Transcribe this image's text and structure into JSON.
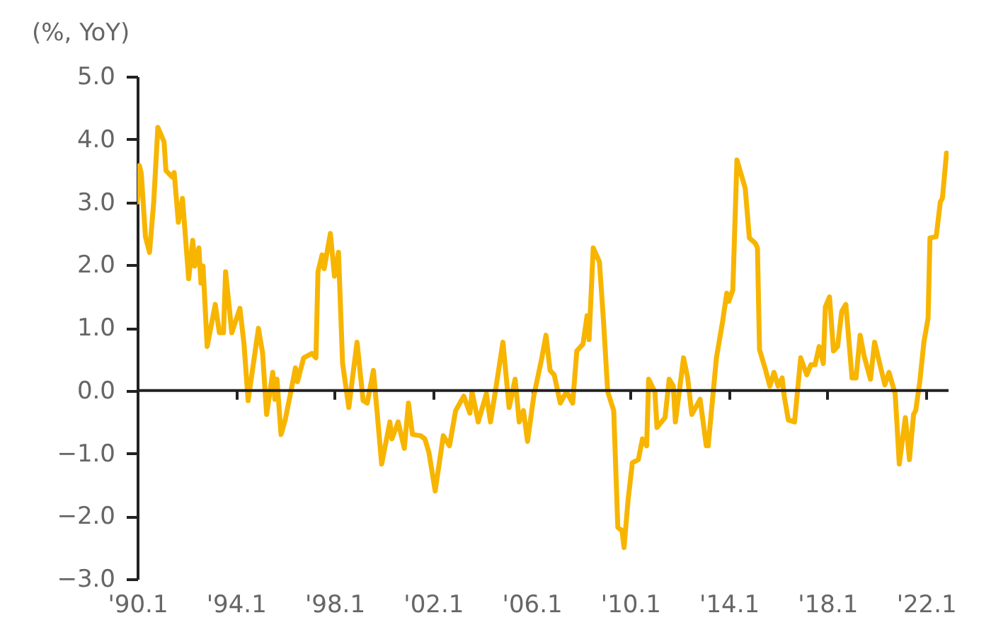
{
  "chart_data": {
    "type": "line",
    "ylabel": "(%, YoY)",
    "x": [
      "1990-01",
      "1990-02",
      "1990-03",
      "1990-05",
      "1990-07",
      "1990-09",
      "1990-11",
      "1991-02",
      "1991-03",
      "1991-06",
      "1991-07",
      "1991-09",
      "1991-11",
      "1992-02",
      "1992-04",
      "1992-05",
      "1992-07",
      "1992-08",
      "1992-09",
      "1992-11",
      "1993-03",
      "1993-05",
      "1993-07",
      "1993-08",
      "1993-11",
      "1994-03",
      "1994-05",
      "1994-07",
      "1994-12",
      "1995-02",
      "1995-04",
      "1995-07",
      "1995-08",
      "1995-09",
      "1995-11",
      "1996-01",
      "1996-05",
      "1996-06",
      "1996-07",
      "1996-10",
      "1997-02",
      "1997-04",
      "1997-05",
      "1997-07",
      "1997-08",
      "1997-11",
      "1998-01",
      "1998-03",
      "1998-05",
      "1998-08",
      "1998-12",
      "1999-03",
      "1999-05",
      "1999-08",
      "1999-12",
      "2000-04",
      "2000-05",
      "2000-08",
      "2000-11",
      "2001-01",
      "2001-03",
      "2001-07",
      "2001-09",
      "2001-11",
      "2002-02",
      "2002-06",
      "2002-09",
      "2002-12",
      "2003-04",
      "2003-07",
      "2003-08",
      "2003-11",
      "2004-03",
      "2004-05",
      "2004-07",
      "2004-11",
      "2005-02",
      "2005-05",
      "2005-07",
      "2005-09",
      "2005-11",
      "2006-02",
      "2006-06",
      "2006-08",
      "2006-10",
      "2006-12",
      "2007-03",
      "2007-06",
      "2007-09",
      "2007-11",
      "2008-02",
      "2008-04",
      "2008-05",
      "2008-07",
      "2008-10",
      "2008-12",
      "2009-02",
      "2009-05",
      "2009-07",
      "2009-09",
      "2009-10",
      "2009-12",
      "2010-02",
      "2010-05",
      "2010-07",
      "2010-09",
      "2010-10",
      "2011-01",
      "2011-02",
      "2011-06",
      "2011-08",
      "2011-10",
      "2011-11",
      "2012-03",
      "2012-05",
      "2012-07",
      "2012-11",
      "2013-02",
      "2013-03",
      "2013-07",
      "2013-10",
      "2013-12",
      "2014-01",
      "2014-03",
      "2014-05",
      "2014-09",
      "2014-11",
      "2015-02",
      "2015-03",
      "2015-04",
      "2015-07",
      "2015-09",
      "2015-11",
      "2016-01",
      "2016-03",
      "2016-04",
      "2016-06",
      "2016-09",
      "2016-12",
      "2017-03",
      "2017-05",
      "2017-07",
      "2017-09",
      "2017-11",
      "2017-12",
      "2018-02",
      "2018-04",
      "2018-06",
      "2018-08",
      "2018-10",
      "2019-01",
      "2019-03",
      "2019-05",
      "2019-07",
      "2019-10",
      "2019-12",
      "2020-03",
      "2020-05",
      "2020-07",
      "2020-10",
      "2020-12",
      "2021-03",
      "2021-05",
      "2021-07",
      "2021-08",
      "2021-10",
      "2021-12",
      "2022-02",
      "2022-03",
      "2022-06",
      "2022-08",
      "2022-09",
      "2022-11"
    ],
    "series": [
      {
        "color": "#f7b500",
        "values": [
          3.0,
          3.58,
          3.45,
          2.45,
          2.2,
          3.0,
          4.19,
          3.96,
          3.5,
          3.4,
          3.47,
          2.68,
          3.06,
          1.78,
          2.39,
          1.98,
          2.27,
          1.71,
          1.98,
          0.7,
          1.37,
          0.92,
          0.92,
          1.89,
          0.92,
          1.31,
          0.74,
          -0.16,
          0.99,
          0.59,
          -0.38,
          0.29,
          -0.14,
          0.18,
          -0.7,
          -0.47,
          0.18,
          0.36,
          0.14,
          0.52,
          0.59,
          0.52,
          1.89,
          2.16,
          1.94,
          2.5,
          1.82,
          2.2,
          0.43,
          -0.27,
          0.77,
          -0.16,
          -0.2,
          0.32,
          -1.17,
          -0.5,
          -0.77,
          -0.5,
          -0.92,
          -0.2,
          -0.7,
          -0.72,
          -0.77,
          -0.99,
          -1.6,
          -0.72,
          -0.88,
          -0.32,
          -0.09,
          -0.36,
          -0.02,
          -0.5,
          -0.05,
          -0.5,
          -0.09,
          0.77,
          -0.27,
          0.18,
          -0.5,
          -0.32,
          -0.81,
          -0.09,
          0.52,
          0.88,
          0.32,
          0.25,
          -0.2,
          -0.02,
          -0.2,
          0.63,
          0.74,
          1.19,
          0.81,
          2.27,
          2.05,
          1.1,
          -0.02,
          -0.32,
          -2.18,
          -2.23,
          -2.5,
          -1.73,
          -1.15,
          -1.1,
          -0.77,
          -0.88,
          0.18,
          -0.02,
          -0.59,
          -0.43,
          0.18,
          0.07,
          -0.5,
          0.52,
          0.2,
          -0.38,
          -0.14,
          -0.88,
          -0.88,
          0.52,
          1.1,
          1.55,
          1.42,
          1.6,
          3.67,
          3.22,
          2.43,
          2.34,
          2.27,
          0.65,
          0.32,
          0.07,
          0.29,
          0.07,
          0.2,
          -0.09,
          -0.47,
          -0.5,
          0.52,
          0.25,
          0.41,
          0.41,
          0.7,
          0.43,
          1.33,
          1.49,
          0.63,
          0.7,
          1.26,
          1.37,
          0.2,
          0.2,
          0.88,
          0.54,
          0.18,
          0.77,
          0.36,
          0.09,
          0.29,
          -0.05,
          -1.17,
          -0.43,
          -1.1,
          -0.38,
          -0.32,
          0.14,
          0.77,
          1.15,
          2.43,
          2.45,
          3.0,
          3.06,
          3.78
        ]
      }
    ],
    "xlim": [
      "1990-01",
      "2022-12"
    ],
    "xticks": [
      {
        "value": "1990-01",
        "label": "'90.1"
      },
      {
        "value": "1994-01",
        "label": "'94.1"
      },
      {
        "value": "1998-01",
        "label": "'98.1"
      },
      {
        "value": "2002-01",
        "label": "'02.1"
      },
      {
        "value": "2006-01",
        "label": "'06.1"
      },
      {
        "value": "2010-01",
        "label": "'10.1"
      },
      {
        "value": "2014-01",
        "label": "'14.1"
      },
      {
        "value": "2018-01",
        "label": "'18.1"
      },
      {
        "value": "2022-01",
        "label": "'22.1"
      }
    ],
    "ylim": [
      -3,
      5
    ],
    "yticks": [
      {
        "value": -3,
        "label": "−3.0"
      },
      {
        "value": -2,
        "label": "−2.0"
      },
      {
        "value": -1,
        "label": "−1.0"
      },
      {
        "value": 0,
        "label": "0.0"
      },
      {
        "value": 1,
        "label": "1.0"
      },
      {
        "value": 2,
        "label": "2.0"
      },
      {
        "value": 3,
        "label": "3.0"
      },
      {
        "value": 4,
        "label": "4.0"
      },
      {
        "value": 5,
        "label": "5.0"
      }
    ],
    "ref_lines": [
      {
        "axis": "y",
        "value": 0,
        "color": "#222222"
      }
    ],
    "grid": false,
    "legend": false,
    "marker": "none",
    "line_style": "solid"
  }
}
